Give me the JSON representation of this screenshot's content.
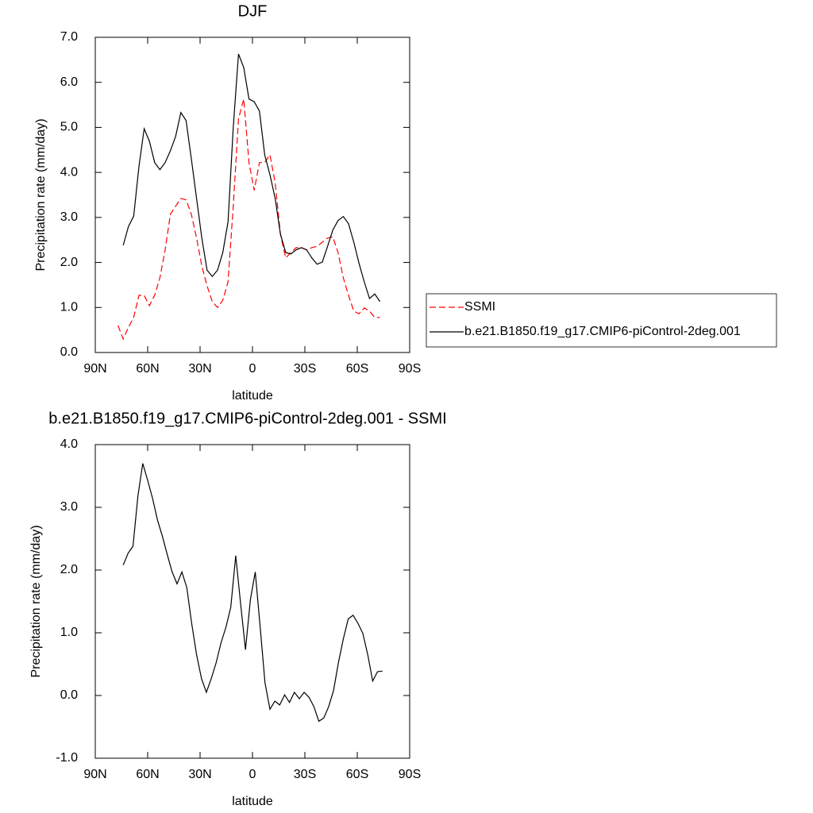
{
  "chart_data": [
    {
      "type": "line",
      "title": "DJF",
      "x_label": "latitude",
      "y_label": "Precipitation rate (mm/day)",
      "x": [
        77,
        74,
        71,
        68,
        65,
        62,
        59,
        56,
        53,
        50,
        47,
        44,
        41,
        38,
        35,
        32,
        29,
        26,
        23,
        20,
        17,
        14,
        11,
        8,
        5,
        2,
        -1,
        -4,
        -7,
        -10,
        -13,
        -16,
        -19,
        -22,
        -25,
        -28,
        -31,
        -34,
        -37,
        -40,
        -43,
        -46,
        -49,
        -52,
        -55,
        -58,
        -61,
        -64,
        -67,
        -70,
        -73
      ],
      "series": [
        {
          "name": "SSMI",
          "color": "#ff0000",
          "line_style": "dashed",
          "values": [
            0.6,
            0.3,
            0.56,
            0.78,
            1.27,
            1.27,
            1.04,
            1.27,
            1.66,
            2.28,
            3.07,
            3.25,
            3.42,
            3.39,
            3.07,
            2.54,
            1.92,
            1.48,
            1.13,
            1.0,
            1.16,
            1.57,
            3.25,
            5.19,
            5.63,
            4.22,
            3.6,
            4.22,
            4.22,
            4.39,
            3.77,
            2.63,
            2.1,
            2.22,
            2.33,
            2.33,
            2.28,
            2.33,
            2.36,
            2.45,
            2.54,
            2.57,
            2.22,
            1.66,
            1.27,
            0.92,
            0.86,
            0.99,
            0.92,
            0.78,
            0.78
          ]
        },
        {
          "name": "b.e21.B1850.f19_g17.CMIP6-piControl-2deg.001",
          "color": "#000000",
          "line_style": "solid",
          "values": [
            null,
            2.38,
            2.8,
            3.03,
            4.13,
            4.97,
            4.69,
            4.22,
            4.06,
            4.22,
            4.48,
            4.8,
            5.33,
            5.15,
            4.3,
            3.42,
            2.54,
            1.83,
            1.69,
            1.83,
            2.22,
            2.9,
            5.0,
            6.63,
            6.33,
            5.63,
            5.57,
            5.36,
            4.39,
            3.95,
            3.42,
            2.63,
            2.22,
            2.19,
            2.28,
            2.33,
            2.28,
            2.1,
            1.96,
            2.01,
            2.36,
            2.72,
            2.93,
            3.02,
            2.86,
            2.45,
            1.98,
            1.57,
            1.2,
            1.3,
            1.13
          ]
        }
      ],
      "xlim": [
        90,
        -90
      ],
      "xticks": [
        {
          "value": 90,
          "label": "90N"
        },
        {
          "value": 60,
          "label": "60N"
        },
        {
          "value": 30,
          "label": "30N"
        },
        0,
        {
          "value": -30,
          "label": "30S"
        },
        {
          "value": -60,
          "label": "60S"
        },
        {
          "value": -90,
          "label": "90S"
        }
      ],
      "ylim": [
        0,
        7
      ],
      "yticks": [
        {
          "value": 0,
          "label": "0.0"
        },
        {
          "value": 1,
          "label": "1.0"
        },
        {
          "value": 2,
          "label": "2.0"
        },
        {
          "value": 3,
          "label": "3.0"
        },
        {
          "value": 4,
          "label": "4.0"
        },
        {
          "value": 5,
          "label": "5.0"
        },
        {
          "value": 6,
          "label": "6.0"
        },
        {
          "value": 7,
          "label": "7.0"
        }
      ],
      "legend": "right"
    },
    {
      "type": "line",
      "title": "b.e21.B1850.f19_g17.CMIP6-piControl-2deg.001 - SSMI",
      "x_label": "latitude",
      "y_label": "Precipitation rate (mm/day)",
      "x": [
        74,
        71.2,
        68.4,
        65.6,
        62.8,
        60,
        57.2,
        54.4,
        51.6,
        48.8,
        46,
        43.2,
        40.4,
        37.6,
        34.8,
        32,
        29.2,
        26.4,
        23.6,
        20.8,
        18,
        15.2,
        12.4,
        9.6,
        6.8,
        4,
        1.2,
        -1.6,
        -4.4,
        -7.2,
        -10,
        -12.8,
        -15.6,
        -18.4,
        -21.2,
        -24,
        -26.8,
        -29.6,
        -32.4,
        -35.2,
        -38,
        -40.8,
        -43.6,
        -46.4,
        -49.2,
        -52,
        -54.8,
        -57.6,
        -60.4,
        -63.2,
        -66,
        -68.8,
        -71.6,
        -74.4
      ],
      "series": [
        {
          "color": "#000000",
          "line_style": "solid",
          "values": [
            2.08,
            2.27,
            2.38,
            3.18,
            3.7,
            3.43,
            3.14,
            2.8,
            2.54,
            2.25,
            1.97,
            1.78,
            1.97,
            1.72,
            1.15,
            0.65,
            0.27,
            0.05,
            0.27,
            0.52,
            0.84,
            1.09,
            1.41,
            2.23,
            1.47,
            0.73,
            1.53,
            1.97,
            1.09,
            0.2,
            -0.22,
            -0.09,
            -0.15,
            0.01,
            -0.11,
            0.05,
            -0.05,
            0.05,
            -0.03,
            -0.18,
            -0.41,
            -0.36,
            -0.18,
            0.08,
            0.52,
            0.9,
            1.22,
            1.28,
            1.15,
            0.99,
            0.65,
            0.23,
            0.38,
            0.39
          ]
        }
      ],
      "xlim": [
        90,
        -90
      ],
      "xticks": [
        {
          "value": 90,
          "label": "90N"
        },
        {
          "value": 60,
          "label": "60N"
        },
        {
          "value": 30,
          "label": "30N"
        },
        0,
        {
          "value": -30,
          "label": "30S"
        },
        {
          "value": -60,
          "label": "60S"
        },
        {
          "value": -90,
          "label": "90S"
        }
      ],
      "ylim": [
        -1,
        4
      ],
      "yticks": [
        {
          "value": -1,
          "label": "-1.0"
        },
        {
          "value": 0,
          "label": "0.0"
        },
        {
          "value": 1,
          "label": "1.0"
        },
        {
          "value": 2,
          "label": "2.0"
        },
        {
          "value": 3,
          "label": "3.0"
        },
        {
          "value": 4,
          "label": "4.0"
        }
      ]
    }
  ]
}
